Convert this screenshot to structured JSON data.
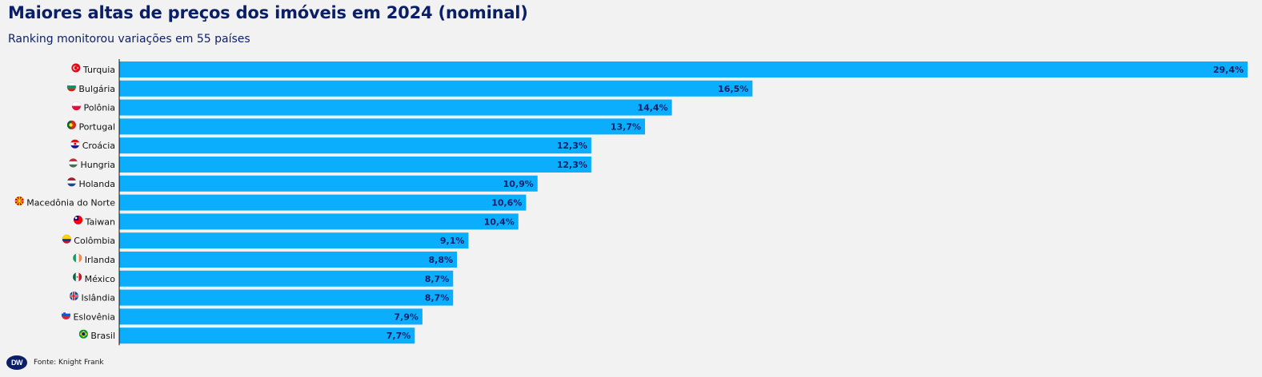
{
  "header": {
    "title": "Maiores altas de preços dos imóveis em 2024 (nominal)",
    "subtitle": "Ranking monitorou variações em 55 países"
  },
  "footer": {
    "logo_text": "DW",
    "source": "Fonte: Knight Frank"
  },
  "colors": {
    "bar": "#0aaefd",
    "value_label": "#0b1f66",
    "axis": "#111111"
  },
  "chart_data": {
    "type": "bar",
    "orientation": "horizontal",
    "title": "Maiores altas de preços dos imóveis em 2024 (nominal)",
    "subtitle": "Ranking monitorou variações em 55 países",
    "categories": [
      "Turquia",
      "Bulgária",
      "Polônia",
      "Portugal",
      "Croácia",
      "Hungria",
      "Holanda",
      "Macedônia do Norte",
      "Taiwan",
      "Colômbia",
      "Irlanda",
      "México",
      "Islândia",
      "Eslovênia",
      "Brasil"
    ],
    "flags": [
      "turkey-flag-icon",
      "bulgaria-flag-icon",
      "poland-flag-icon",
      "portugal-flag-icon",
      "croatia-flag-icon",
      "hungary-flag-icon",
      "netherlands-flag-icon",
      "north-macedonia-flag-icon",
      "taiwan-flag-icon",
      "colombia-flag-icon",
      "ireland-flag-icon",
      "mexico-flag-icon",
      "iceland-flag-icon",
      "slovenia-flag-icon",
      "brazil-flag-icon"
    ],
    "values": [
      29.4,
      16.5,
      14.4,
      13.7,
      12.3,
      12.3,
      10.9,
      10.6,
      10.4,
      9.1,
      8.8,
      8.7,
      8.7,
      7.9,
      7.7
    ],
    "value_labels": [
      "29,4%",
      "16,5%",
      "14,4%",
      "13,7%",
      "12,3%",
      "12,3%",
      "10,9%",
      "10,6%",
      "10,4%",
      "9,1%",
      "8,8%",
      "8,7%",
      "8,7%",
      "7,9%",
      "7,7%"
    ],
    "xlim": [
      0,
      29.4
    ],
    "grid": false,
    "legend": "none"
  }
}
